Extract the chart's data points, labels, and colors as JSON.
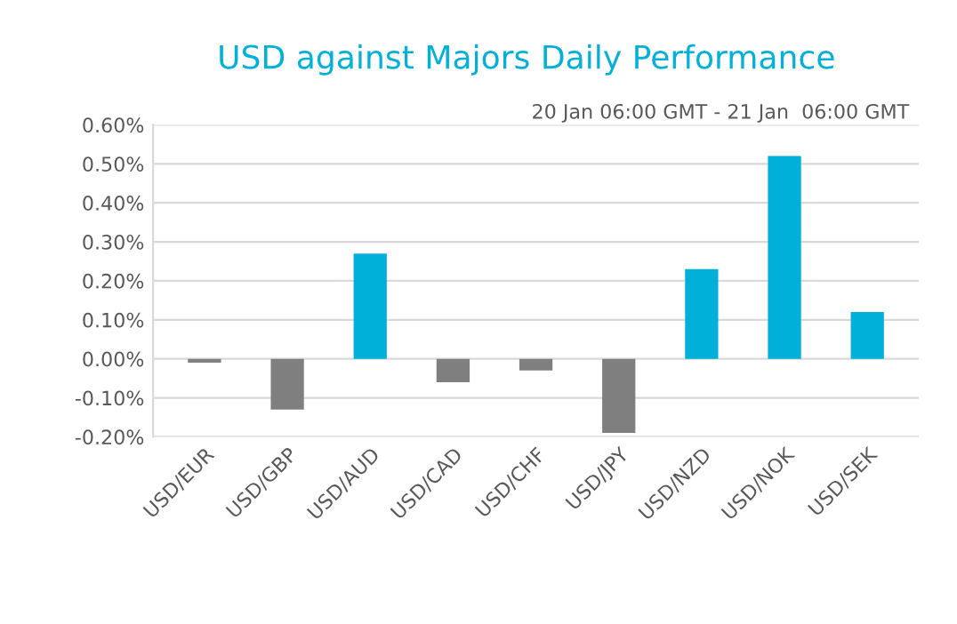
{
  "chart_data": {
    "type": "bar",
    "title": "USD against Majors Daily Performance",
    "subtitle": "20 Jan 06:00 GMT - 21 Jan  06:00 GMT",
    "categories": [
      "USD/EUR",
      "USD/GBP",
      "USD/AUD",
      "USD/CAD",
      "USD/CHF",
      "USD/JPY",
      "USD/NZD",
      "USD/NOK",
      "USD/SEK"
    ],
    "values": [
      -0.01,
      -0.13,
      0.27,
      -0.06,
      -0.03,
      -0.19,
      0.23,
      0.52,
      0.12
    ],
    "colors": [
      "#7f7f7f",
      "#7f7f7f",
      "#00b0d8",
      "#7f7f7f",
      "#7f7f7f",
      "#7f7f7f",
      "#00b0d8",
      "#00b0d8",
      "#00b0d8"
    ],
    "ylim": [
      -0.2,
      0.6
    ],
    "yticks": [
      {
        "value": -0.2,
        "label": "-0.20%"
      },
      {
        "value": -0.1,
        "label": "-0.10%"
      },
      {
        "value": 0,
        "label": "0.00%"
      },
      {
        "value": 0.1,
        "label": "0.10%"
      },
      {
        "value": 0.2,
        "label": "0.20%"
      },
      {
        "value": 0.3,
        "label": "0.30%"
      },
      {
        "value": 0.4,
        "label": "0.40%"
      },
      {
        "value": 0.5,
        "label": "0.50%"
      },
      {
        "value": 0.6,
        "label": "0.60%"
      }
    ],
    "grid": "y",
    "legend": false
  }
}
